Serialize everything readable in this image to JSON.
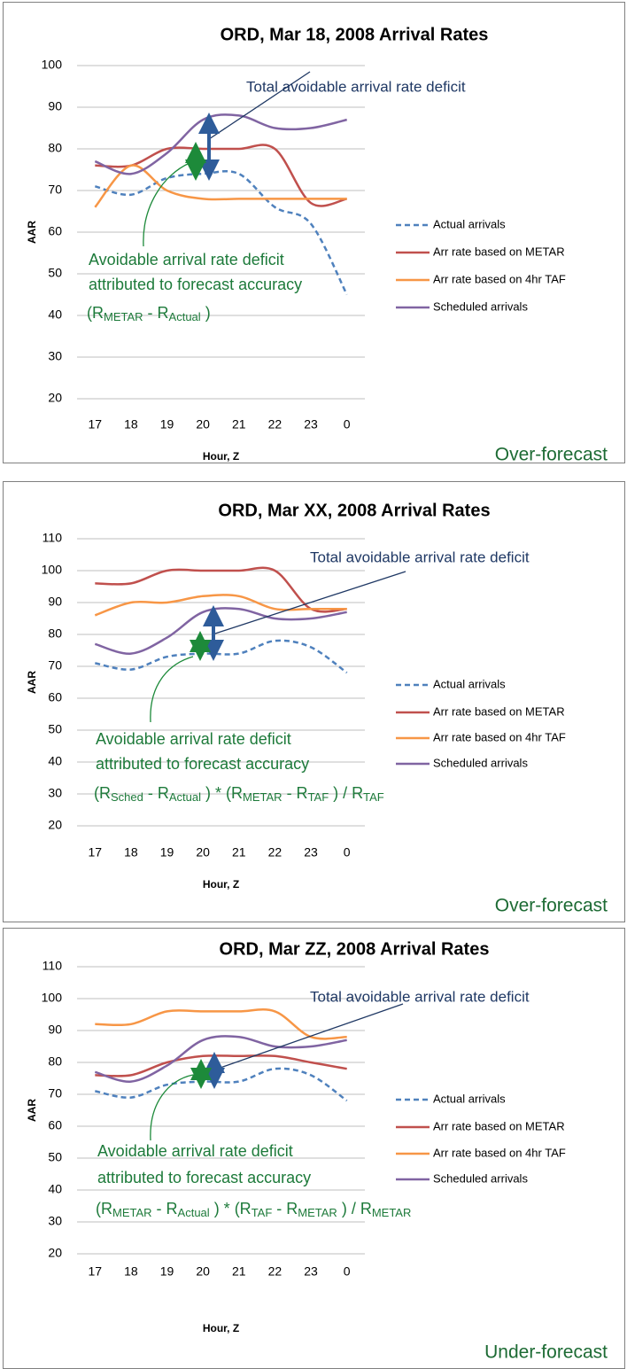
{
  "chart_data": [
    {
      "type": "line",
      "title": "ORD, Mar 18, 2008 Arrival Rates",
      "x_label": "Hour, Z",
      "y_label": "AAR",
      "categories": [
        "17",
        "18",
        "19",
        "20",
        "21",
        "22",
        "23",
        "0"
      ],
      "series": [
        {
          "name": "Actual arrivals",
          "color": "#4f81bd",
          "dashed": true,
          "values": [
            71,
            69,
            73,
            74,
            74,
            66,
            62,
            45
          ]
        },
        {
          "name": "Arr rate based on METAR",
          "color": "#c0504d",
          "values": [
            76,
            76,
            80,
            80,
            80,
            80,
            67,
            68
          ]
        },
        {
          "name": "Arr rate based on 4hr TAF",
          "color": "#f79646",
          "values": [
            66,
            76,
            70,
            68,
            68,
            68,
            68,
            68
          ]
        },
        {
          "name": "Scheduled arrivals",
          "color": "#8064a2",
          "values": [
            77,
            74,
            79,
            87,
            88,
            85,
            85,
            87
          ]
        }
      ],
      "ylim": [
        20,
        100
      ],
      "yticks": [
        20,
        30,
        40,
        50,
        60,
        70,
        80,
        90,
        100
      ],
      "grid": true,
      "legend": "right",
      "annotations": [
        "Total avoidable arrival rate deficit",
        "Avoidable arrival rate deficit",
        "attributed to forecast accuracy"
      ],
      "formula": [
        {
          "text": "(R",
          "sub": false
        },
        {
          "text": "METAR",
          "sub": true
        },
        {
          "text": " - R",
          "sub": false
        },
        {
          "text": "Actual",
          "sub": true
        },
        {
          "text": " )",
          "sub": false
        }
      ],
      "label": "Over-forecast"
    },
    {
      "type": "line",
      "title": "ORD, Mar XX, 2008 Arrival Rates",
      "x_label": "Hour, Z",
      "y_label": "AAR",
      "categories": [
        "17",
        "18",
        "19",
        "20",
        "21",
        "22",
        "23",
        "0"
      ],
      "series": [
        {
          "name": "Actual arrivals",
          "color": "#4f81bd",
          "dashed": true,
          "values": [
            71,
            69,
            73,
            74,
            74,
            78,
            76,
            68
          ]
        },
        {
          "name": "Arr rate based on METAR",
          "color": "#c0504d",
          "values": [
            96,
            96,
            100,
            100,
            100,
            100,
            88,
            88
          ]
        },
        {
          "name": "Arr rate based on 4hr TAF",
          "color": "#f79646",
          "values": [
            86,
            90,
            90,
            92,
            92,
            88,
            88,
            88
          ]
        },
        {
          "name": "Scheduled arrivals",
          "color": "#8064a2",
          "values": [
            77,
            74,
            79,
            87,
            88,
            85,
            85,
            87
          ]
        }
      ],
      "ylim": [
        20,
        110
      ],
      "yticks": [
        20,
        30,
        40,
        50,
        60,
        70,
        80,
        90,
        100,
        110
      ],
      "grid": true,
      "legend": "right",
      "annotations": [
        "Total avoidable arrival rate deficit",
        "Avoidable arrival rate deficit",
        "attributed to forecast accuracy"
      ],
      "formula": [
        {
          "text": "(R",
          "sub": false
        },
        {
          "text": "Sched",
          "sub": true
        },
        {
          "text": " - R",
          "sub": false
        },
        {
          "text": "Actual",
          "sub": true
        },
        {
          "text": " ) * (R",
          "sub": false
        },
        {
          "text": "METAR",
          "sub": true
        },
        {
          "text": " - R",
          "sub": false
        },
        {
          "text": "TAF",
          "sub": true
        },
        {
          "text": " ) / R",
          "sub": false
        },
        {
          "text": "TAF",
          "sub": true
        }
      ],
      "label": "Over-forecast"
    },
    {
      "type": "line",
      "title": "ORD, Mar ZZ, 2008 Arrival Rates",
      "x_label": "Hour, Z",
      "y_label": "AAR",
      "categories": [
        "17",
        "18",
        "19",
        "20",
        "21",
        "22",
        "23",
        "0"
      ],
      "series": [
        {
          "name": "Actual arrivals",
          "color": "#4f81bd",
          "dashed": true,
          "values": [
            71,
            69,
            73,
            74,
            74,
            78,
            76,
            68
          ]
        },
        {
          "name": "Arr rate based on METAR",
          "color": "#c0504d",
          "values": [
            76,
            76,
            80,
            82,
            82,
            82,
            80,
            78
          ]
        },
        {
          "name": "Arr rate based on 4hr TAF",
          "color": "#f79646",
          "values": [
            92,
            92,
            96,
            96,
            96,
            96,
            88,
            88
          ]
        },
        {
          "name": "Scheduled arrivals",
          "color": "#8064a2",
          "values": [
            77,
            74,
            79,
            87,
            88,
            85,
            85,
            87
          ]
        }
      ],
      "ylim": [
        20,
        110
      ],
      "yticks": [
        20,
        30,
        40,
        50,
        60,
        70,
        80,
        90,
        100,
        110
      ],
      "grid": true,
      "legend": "right",
      "annotations": [
        "Total avoidable arrival rate deficit",
        "Avoidable arrival rate deficit",
        "attributed to forecast accuracy"
      ],
      "formula": [
        {
          "text": "(R",
          "sub": false
        },
        {
          "text": "METAR",
          "sub": true
        },
        {
          "text": " - R",
          "sub": false
        },
        {
          "text": "Actual",
          "sub": true
        },
        {
          "text": " ) * (R",
          "sub": false
        },
        {
          "text": "TAF",
          "sub": true
        },
        {
          "text": " - R",
          "sub": false
        },
        {
          "text": "METAR",
          "sub": true
        },
        {
          "text": " ) / R",
          "sub": false
        },
        {
          "text": "METAR",
          "sub": true
        }
      ],
      "label": "Under-forecast"
    }
  ]
}
